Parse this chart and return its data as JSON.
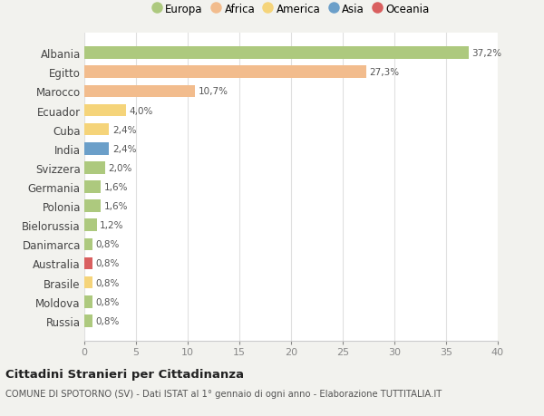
{
  "countries": [
    "Albania",
    "Egitto",
    "Marocco",
    "Ecuador",
    "Cuba",
    "India",
    "Svizzera",
    "Germania",
    "Polonia",
    "Bielorussia",
    "Danimarca",
    "Australia",
    "Brasile",
    "Moldova",
    "Russia"
  ],
  "values": [
    37.2,
    27.3,
    10.7,
    4.0,
    2.4,
    2.4,
    2.0,
    1.6,
    1.6,
    1.2,
    0.8,
    0.8,
    0.8,
    0.8,
    0.8
  ],
  "labels": [
    "37,2%",
    "27,3%",
    "10,7%",
    "4,0%",
    "2,4%",
    "2,4%",
    "2,0%",
    "1,6%",
    "1,6%",
    "1,2%",
    "0,8%",
    "0,8%",
    "0,8%",
    "0,8%",
    "0,8%"
  ],
  "colors": [
    "#adc97e",
    "#f2bc8d",
    "#f2bc8d",
    "#f5d47a",
    "#f5d47a",
    "#6b9fc9",
    "#adc97e",
    "#adc97e",
    "#adc97e",
    "#adc97e",
    "#adc97e",
    "#d95f5f",
    "#f5d47a",
    "#adc97e",
    "#adc97e"
  ],
  "continent_labels": [
    "Europa",
    "Africa",
    "America",
    "Asia",
    "Oceania"
  ],
  "continent_colors": [
    "#adc97e",
    "#f2bc8d",
    "#f5d47a",
    "#6b9fc9",
    "#d95f5f"
  ],
  "title": "Cittadini Stranieri per Cittadinanza",
  "subtitle": "COMUNE DI SPOTORNO (SV) - Dati ISTAT al 1° gennaio di ogni anno - Elaborazione TUTTITALIA.IT",
  "xlim": [
    0,
    40
  ],
  "xticks": [
    0,
    5,
    10,
    15,
    20,
    25,
    30,
    35,
    40
  ],
  "background_color": "#f2f2ee",
  "bar_background": "#ffffff",
  "grid_color": "#e0e0e0"
}
